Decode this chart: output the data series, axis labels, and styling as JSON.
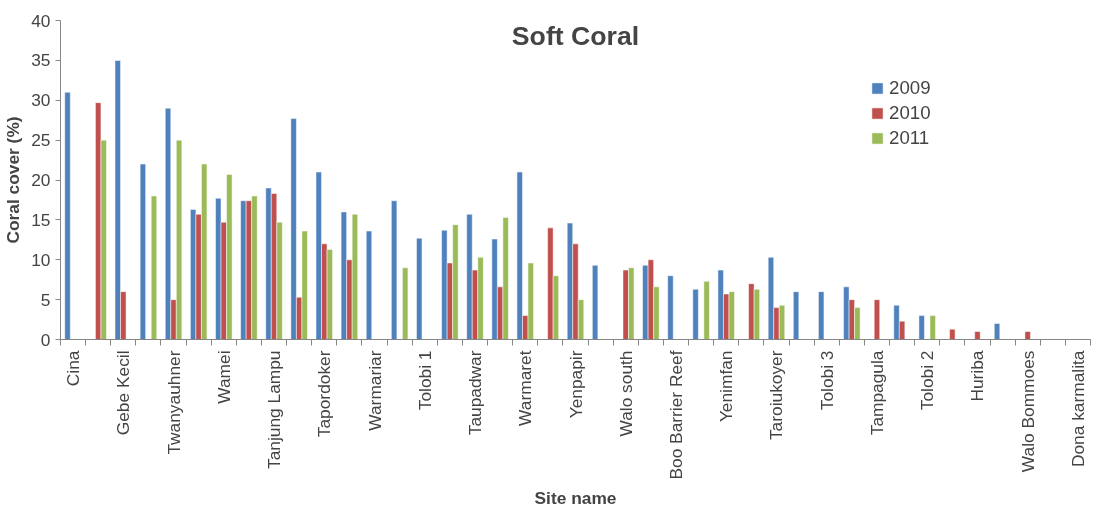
{
  "chart_data": {
    "type": "bar",
    "title": "Soft Coral",
    "xlabel": "Site name",
    "ylabel": "Coral cover (%)",
    "categories": [
      "Cina",
      null,
      "Gebe Kecil",
      null,
      "Twanyauhner",
      null,
      "Wamei",
      null,
      "Tanjung Lampu",
      null,
      "Tapordoker",
      null,
      "Warmariar",
      null,
      "Tolobi 1",
      null,
      "Taupadwar",
      null,
      "Warmaret",
      null,
      "Yenpapir",
      null,
      "Walo south",
      null,
      "Boo Barrier Reef",
      null,
      "Yenimfan",
      null,
      "Taroiukoyer",
      null,
      "Tolobi 3",
      null,
      "Tampagula",
      null,
      "Tolobi 2",
      null,
      "Huriba",
      null,
      "Walo Bommoes",
      null,
      "Dona karmalita"
    ],
    "series": [
      {
        "name": "2009",
        "color": "#4f81bd",
        "values": [
          31,
          null,
          35,
          22,
          29,
          16.3,
          17.7,
          17.4,
          19,
          27.7,
          21,
          16,
          13.6,
          17.4,
          12.7,
          13.7,
          15.7,
          12.6,
          21,
          null,
          14.6,
          9.3,
          null,
          9.3,
          8,
          6.3,
          8.7,
          null,
          10.3,
          6,
          6,
          6.6,
          null,
          4.3,
          3,
          null,
          null,
          2,
          null,
          null,
          null
        ]
      },
      {
        "name": "2010",
        "color": "#c0504d",
        "values": [
          null,
          29.7,
          6,
          null,
          5,
          15.7,
          14.7,
          17.4,
          18.3,
          5.3,
          12,
          10,
          null,
          null,
          null,
          9.6,
          8.7,
          6.6,
          3,
          14,
          12,
          null,
          8.7,
          10,
          null,
          null,
          5.7,
          7,
          4,
          null,
          null,
          5,
          5,
          2.3,
          null,
          1.3,
          1,
          null,
          1,
          null,
          null
        ]
      },
      {
        "name": "2011",
        "color": "#9bbb59",
        "values": [
          null,
          25,
          null,
          18,
          25,
          22,
          20.7,
          18,
          14.7,
          13.6,
          11.3,
          15.7,
          null,
          9,
          null,
          14.4,
          10.3,
          15.3,
          9.6,
          8,
          5,
          null,
          9,
          6.6,
          null,
          7.3,
          6,
          6.3,
          4.3,
          null,
          null,
          4,
          null,
          null,
          3,
          null,
          null,
          null,
          null,
          null,
          null
        ]
      }
    ],
    "ylim": [
      0,
      40
    ],
    "yticks": [
      0,
      5,
      10,
      15,
      20,
      25,
      30,
      35,
      40
    ],
    "grid": false,
    "legend": "right"
  }
}
